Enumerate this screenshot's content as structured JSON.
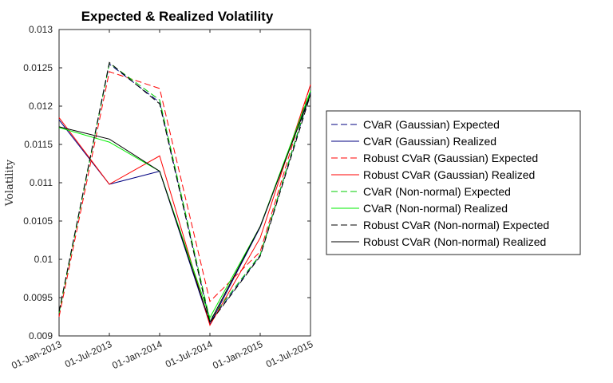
{
  "chart_data": {
    "type": "line",
    "title": "Expected & Realized Volatility",
    "xlabel": "",
    "ylabel": "Volatility",
    "x_ticks": [
      "01-Jan-2013",
      "01-Jul-2013",
      "01-Jan-2014",
      "01-Jul-2014",
      "01-Jan-2015",
      "01-Jul-2015"
    ],
    "ylim": [
      0.009,
      0.013
    ],
    "y_ticks": [
      "0.009",
      "0.0095",
      "0.01",
      "0.0105",
      "0.011",
      "0.0115",
      "0.012",
      "0.0125",
      "0.013"
    ],
    "legend_position": "right",
    "grid": false,
    "series": [
      {
        "name": "CVaR (Gaussian) Expected",
        "color": "#000080",
        "dash": "dashed",
        "values": [
          0.00931,
          0.01255,
          0.01205,
          0.00918,
          0.01005,
          0.01218
        ]
      },
      {
        "name": "CVaR (Gaussian) Realized",
        "color": "#000080",
        "dash": "solid",
        "values": [
          0.01182,
          0.01098,
          0.01115,
          0.00915,
          0.01042,
          0.01218
        ]
      },
      {
        "name": "Robust CVaR (Gaussian) Expected",
        "color": "#ff0000",
        "dash": "dashed",
        "values": [
          0.00925,
          0.01245,
          0.01223,
          0.00945,
          0.0101,
          0.01228
        ]
      },
      {
        "name": "Robust CVaR (Gaussian) Realized",
        "color": "#ff0000",
        "dash": "solid",
        "values": [
          0.01185,
          0.01098,
          0.01135,
          0.00914,
          0.01028,
          0.01228
        ]
      },
      {
        "name": "CVaR (Non-normal) Expected",
        "color": "#00cc00",
        "dash": "dashed",
        "values": [
          0.0093,
          0.01256,
          0.01208,
          0.00921,
          0.01006,
          0.0122
        ]
      },
      {
        "name": "CVaR (Non-normal) Realized",
        "color": "#00ee00",
        "dash": "solid",
        "values": [
          0.01172,
          0.01153,
          0.01115,
          0.00924,
          0.01043,
          0.0122
        ]
      },
      {
        "name": "Robust CVaR (Non-normal) Expected",
        "color": "#000000",
        "dash": "dashed",
        "values": [
          0.00932,
          0.01257,
          0.01203,
          0.00917,
          0.01004,
          0.01215
        ]
      },
      {
        "name": "Robust CVaR (Non-normal) Realized",
        "color": "#000000",
        "dash": "solid",
        "values": [
          0.01173,
          0.01157,
          0.01115,
          0.00918,
          0.01043,
          0.01215
        ]
      }
    ]
  }
}
